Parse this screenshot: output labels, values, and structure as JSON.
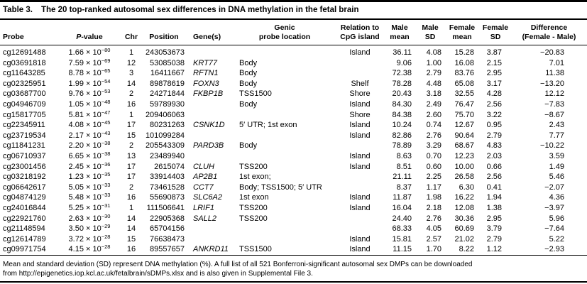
{
  "table": {
    "title_label": "Table 3.",
    "title_caption": "The 20 top-ranked autosomal sex differences in DNA methylation in the fetal brain",
    "columns": [
      {
        "label": "Probe"
      },
      {
        "label": "P-value"
      },
      {
        "label": "Chr"
      },
      {
        "label": "Position"
      },
      {
        "label": "Gene(s)"
      },
      {
        "label": "Genic\nprobe location"
      },
      {
        "label": "Relation to\nCpG island"
      },
      {
        "label": "Male\nmean"
      },
      {
        "label": "Male\nSD"
      },
      {
        "label": "Female\nmean"
      },
      {
        "label": "Female\nSD"
      },
      {
        "label": "Difference\n(Female - Male)"
      }
    ],
    "rows": [
      {
        "probe": "cg12691488",
        "p_mantissa": "1.66",
        "p_exponent": "−80",
        "chr": "1",
        "position": "243053673",
        "gene": "",
        "genic_location": "",
        "cpg_relation": "Island",
        "male_mean": "36.11",
        "male_sd": "4.08",
        "female_mean": "15.28",
        "female_sd": "3.87",
        "difference": "−20.83"
      },
      {
        "probe": "cg03691818",
        "p_mantissa": "7.59",
        "p_exponent": "−69",
        "chr": "12",
        "position": "53085038",
        "gene": "KRT77",
        "genic_location": "Body",
        "cpg_relation": "",
        "male_mean": "9.06",
        "male_sd": "1.00",
        "female_mean": "16.08",
        "female_sd": "2.15",
        "difference": "7.01"
      },
      {
        "probe": "cg11643285",
        "p_mantissa": "8.78",
        "p_exponent": "−65",
        "chr": "3",
        "position": "16411667",
        "gene": "RFTN1",
        "genic_location": "Body",
        "cpg_relation": "",
        "male_mean": "72.38",
        "male_sd": "2.79",
        "female_mean": "83.76",
        "female_sd": "2.95",
        "difference": "11.38"
      },
      {
        "probe": "cg02325951",
        "p_mantissa": "1.99",
        "p_exponent": "−54",
        "chr": "14",
        "position": "89878619",
        "gene": "FOXN3",
        "genic_location": "Body",
        "cpg_relation": "Shelf",
        "male_mean": "78.28",
        "male_sd": "4.48",
        "female_mean": "65.08",
        "female_sd": "3.17",
        "difference": "−13.20"
      },
      {
        "probe": "cg03687700",
        "p_mantissa": "9.76",
        "p_exponent": "−53",
        "chr": "2",
        "position": "24271844",
        "gene": "FKBP1B",
        "genic_location": "TSS1500",
        "cpg_relation": "Shore",
        "male_mean": "20.43",
        "male_sd": "3.18",
        "female_mean": "32.55",
        "female_sd": "4.28",
        "difference": "12.12"
      },
      {
        "probe": "cg04946709",
        "p_mantissa": "1.05",
        "p_exponent": "−48",
        "chr": "16",
        "position": "59789930",
        "gene": "",
        "genic_location": "Body",
        "cpg_relation": "Island",
        "male_mean": "84.30",
        "male_sd": "2.49",
        "female_mean": "76.47",
        "female_sd": "2.56",
        "difference": "−7.83"
      },
      {
        "probe": "cg15817705",
        "p_mantissa": "5.81",
        "p_exponent": "−47",
        "chr": "1",
        "position": "209406063",
        "gene": "",
        "genic_location": "",
        "cpg_relation": "Shore",
        "male_mean": "84.38",
        "male_sd": "2.60",
        "female_mean": "75.70",
        "female_sd": "3.22",
        "difference": "−8.67"
      },
      {
        "probe": "cg22345911",
        "p_mantissa": "4.08",
        "p_exponent": "−45",
        "chr": "17",
        "position": "80231263",
        "gene": "CSNK1D",
        "genic_location": "5′ UTR; 1st exon",
        "cpg_relation": "Island",
        "male_mean": "10.24",
        "male_sd": "0.74",
        "female_mean": "12.67",
        "female_sd": "0.95",
        "difference": "2.43"
      },
      {
        "probe": "cg23719534",
        "p_mantissa": "2.17",
        "p_exponent": "−43",
        "chr": "15",
        "position": "101099284",
        "gene": "",
        "genic_location": "",
        "cpg_relation": "Island",
        "male_mean": "82.86",
        "male_sd": "2.76",
        "female_mean": "90.64",
        "female_sd": "2.79",
        "difference": "7.77"
      },
      {
        "probe": "cg11841231",
        "p_mantissa": "2.20",
        "p_exponent": "−38",
        "chr": "2",
        "position": "205543309",
        "gene": "PARD3B",
        "genic_location": "Body",
        "cpg_relation": "",
        "male_mean": "78.89",
        "male_sd": "3.29",
        "female_mean": "68.67",
        "female_sd": "4.83",
        "difference": "−10.22"
      },
      {
        "probe": "cg06710937",
        "p_mantissa": "6.65",
        "p_exponent": "−38",
        "chr": "13",
        "position": "23489940",
        "gene": "",
        "genic_location": "",
        "cpg_relation": "Island",
        "male_mean": "8.63",
        "male_sd": "0.70",
        "female_mean": "12.23",
        "female_sd": "2.03",
        "difference": "3.59"
      },
      {
        "probe": "cg23001456",
        "p_mantissa": "2.45",
        "p_exponent": "−36",
        "chr": "17",
        "position": "2615074",
        "gene": "CLUH",
        "genic_location": "TSS200",
        "cpg_relation": "Island",
        "male_mean": "8.51",
        "male_sd": "0.60",
        "female_mean": "10.00",
        "female_sd": "0.66",
        "difference": "1.49"
      },
      {
        "probe": "cg03218192",
        "p_mantissa": "1.23",
        "p_exponent": "−35",
        "chr": "17",
        "position": "33914403",
        "gene": "AP2B1",
        "genic_location": "1st exon;",
        "cpg_relation": "",
        "male_mean": "21.11",
        "male_sd": "2.25",
        "female_mean": "26.58",
        "female_sd": "2.56",
        "difference": "5.46"
      },
      {
        "probe": "cg06642617",
        "p_mantissa": "5.05",
        "p_exponent": "−33",
        "chr": "2",
        "position": "73461528",
        "gene": "CCT7",
        "genic_location": "Body; TSS1500; 5′ UTR",
        "cpg_relation": "",
        "male_mean": "8.37",
        "male_sd": "1.17",
        "female_mean": "6.30",
        "female_sd": "0.41",
        "difference": "−2.07"
      },
      {
        "probe": "cg04874129",
        "p_mantissa": "5.48",
        "p_exponent": "−33",
        "chr": "16",
        "position": "55690873",
        "gene": "SLC6A2",
        "genic_location": "1st exon",
        "cpg_relation": "Island",
        "male_mean": "11.87",
        "male_sd": "1.98",
        "female_mean": "16.22",
        "female_sd": "1.94",
        "difference": "4.36"
      },
      {
        "probe": "cg24016844",
        "p_mantissa": "5.25",
        "p_exponent": "−31",
        "chr": "1",
        "position": "111506641",
        "gene": "LRIF1",
        "genic_location": "TSS200",
        "cpg_relation": "Island",
        "male_mean": "16.04",
        "male_sd": "2.18",
        "female_mean": "12.08",
        "female_sd": "1.38",
        "difference": "−3.97"
      },
      {
        "probe": "cg22921760",
        "p_mantissa": "2.63",
        "p_exponent": "−30",
        "chr": "14",
        "position": "22905368",
        "gene": "SALL2",
        "genic_location": "TSS200",
        "cpg_relation": "",
        "male_mean": "24.40",
        "male_sd": "2.76",
        "female_mean": "30.36",
        "female_sd": "2.95",
        "difference": "5.96"
      },
      {
        "probe": "cg21148594",
        "p_mantissa": "3.50",
        "p_exponent": "−29",
        "chr": "14",
        "position": "65704156",
        "gene": "",
        "genic_location": "",
        "cpg_relation": "",
        "male_mean": "68.33",
        "male_sd": "4.05",
        "female_mean": "60.69",
        "female_sd": "3.79",
        "difference": "−7.64"
      },
      {
        "probe": "cg12614789",
        "p_mantissa": "3.72",
        "p_exponent": "−28",
        "chr": "15",
        "position": "76638473",
        "gene": "",
        "genic_location": "",
        "cpg_relation": "Island",
        "male_mean": "15.81",
        "male_sd": "2.57",
        "female_mean": "21.02",
        "female_sd": "2.79",
        "difference": "5.22"
      },
      {
        "probe": "cg09971754",
        "p_mantissa": "4.15",
        "p_exponent": "−28",
        "chr": "16",
        "position": "89557657",
        "gene": "ANKRD11",
        "genic_location": "TSS1500",
        "cpg_relation": "Island",
        "male_mean": "11.15",
        "male_sd": "1.70",
        "female_mean": "8.22",
        "female_sd": "1.12",
        "difference": "−2.93"
      }
    ],
    "footnote": "Mean and standard deviation (SD) represent DNA methylation (%). A full list of all 521 Bonferroni-significant autosomal sex DMPs can be downloaded\nfrom http://epigenetics.iop.kcl.ac.uk/fetalbrain/sDMPs.xlsx and is also given in Supplemental File 3."
  }
}
